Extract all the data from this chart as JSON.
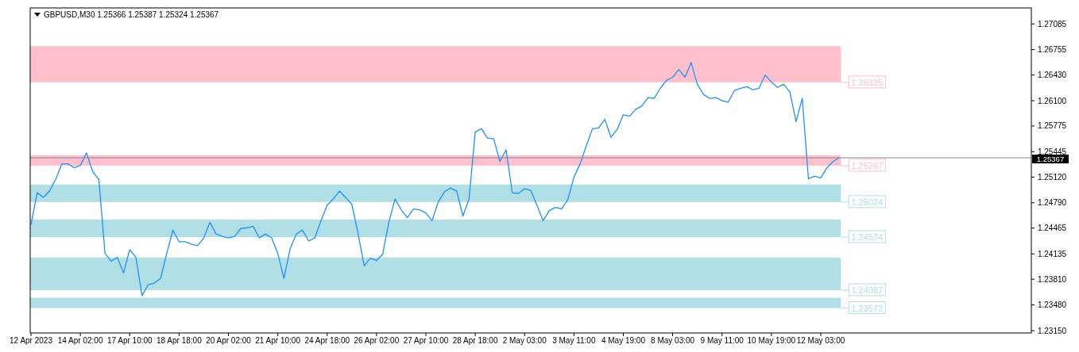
{
  "chart_data": {
    "type": "line",
    "title": "GBPUSD,M30 1.25366 1.25387 1.25324 1.25367",
    "categories": [
      "12 Apr 2023",
      null,
      null,
      null,
      null,
      null,
      null,
      null,
      "14 Apr 02:00",
      null,
      null,
      null,
      null,
      null,
      null,
      null,
      "17 Apr 10:00",
      null,
      null,
      null,
      null,
      null,
      null,
      null,
      "18 Apr 18:00",
      null,
      null,
      null,
      null,
      null,
      null,
      null,
      "20 Apr 02:00",
      null,
      null,
      null,
      null,
      null,
      null,
      null,
      "21 Apr 10:00",
      null,
      null,
      null,
      null,
      null,
      null,
      null,
      "24 Apr 18:00",
      null,
      null,
      null,
      null,
      null,
      null,
      null,
      "26 Apr 02:00",
      null,
      null,
      null,
      null,
      null,
      null,
      null,
      "27 Apr 10:00",
      null,
      null,
      null,
      null,
      null,
      null,
      null,
      "28 Apr 18:00",
      null,
      null,
      null,
      null,
      null,
      null,
      null,
      "2 May 03:00",
      null,
      null,
      null,
      null,
      null,
      null,
      null,
      "3 May 11:00",
      null,
      null,
      null,
      null,
      null,
      null,
      null,
      "4 May 19:00",
      null,
      null,
      null,
      null,
      null,
      null,
      null,
      "8 May 03:00",
      null,
      null,
      null,
      null,
      null,
      null,
      null,
      "9 May 11:00",
      null,
      null,
      null,
      null,
      null,
      null,
      null,
      "10 May 19:00",
      null,
      null,
      null,
      null,
      null,
      null,
      null,
      "12 May 03:00",
      null,
      null,
      null,
      null,
      null,
      null,
      null,
      null,
      null,
      null,
      null,
      null,
      null,
      null,
      null,
      null,
      null,
      null,
      null,
      null,
      null,
      null,
      null,
      null,
      null,
      null,
      null,
      null,
      null,
      null,
      null,
      null,
      null,
      null
    ],
    "series": [
      {
        "color": "#1e90ff",
        "values": [
          1.2451,
          1.2492,
          1.2486,
          1.2494,
          1.2509,
          1.2529,
          1.2529,
          1.2524,
          1.2527,
          1.2543,
          1.2519,
          1.2509,
          1.2414,
          1.2404,
          1.2409,
          1.2389,
          1.2419,
          1.2409,
          1.236,
          1.2374,
          1.2376,
          1.2382,
          1.2414,
          1.2444,
          1.2429,
          1.2429,
          1.2426,
          1.2424,
          1.2434,
          1.2454,
          1.2439,
          1.2436,
          1.2434,
          1.2436,
          1.2446,
          1.2447,
          1.2449,
          1.2434,
          1.2439,
          1.2434,
          1.2414,
          1.2382,
          1.242,
          1.2439,
          1.2444,
          1.243,
          1.2434,
          1.2456,
          1.2476,
          1.2484,
          1.2494,
          1.2486,
          1.2477,
          1.244,
          1.2398,
          1.2408,
          1.2405,
          1.2413,
          1.2454,
          1.2484,
          1.247,
          1.246,
          1.2471,
          1.247,
          1.2466,
          1.2456,
          1.248,
          1.2493,
          1.2498,
          1.2494,
          1.2462,
          1.2484,
          1.257,
          1.2574,
          1.2562,
          1.2561,
          1.2532,
          1.2547,
          1.2492,
          1.2491,
          1.2497,
          1.2495,
          1.2476,
          1.2456,
          1.2469,
          1.2473,
          1.2471,
          1.2483,
          1.2512,
          1.2529,
          1.2552,
          1.2574,
          1.2575,
          1.2586,
          1.2563,
          1.2573,
          1.2592,
          1.259,
          1.2599,
          1.2603,
          1.2614,
          1.2613,
          1.2626,
          1.2636,
          1.264,
          1.265,
          1.264,
          1.2659,
          1.2631,
          1.2618,
          1.2613,
          1.2614,
          1.261,
          1.2608,
          1.2623,
          1.2626,
          1.2628,
          1.2624,
          1.2626,
          1.2643,
          1.2634,
          1.2627,
          1.2631,
          1.2621,
          1.2583,
          1.2613,
          1.251,
          1.2513,
          1.2511,
          1.2524,
          1.2532,
          1.2537,
          null,
          null,
          null,
          null,
          null,
          null,
          null,
          null,
          null,
          null,
          null,
          null,
          null,
          null,
          null,
          null,
          null,
          null,
          null,
          null,
          null,
          null,
          null,
          null,
          null,
          null,
          null,
          null,
          null,
          null,
          null
        ]
      }
    ],
    "ylim": [
      1.2312,
      1.2729
    ],
    "yticks": [
      {
        "value": 1.2315,
        "label": "1.23150"
      },
      {
        "value": 1.2348,
        "label": "1.23480"
      },
      {
        "value": 1.2381,
        "label": "1.23810"
      },
      1.24135,
      1.24465,
      {
        "value": 1.2479,
        "label": "1.24790"
      },
      {
        "value": 1.2512,
        "label": "1.25120"
      },
      1.25445,
      1.25775,
      {
        "value": 1.261,
        "label": "1.26100"
      },
      {
        "value": 1.2643,
        "label": "1.26430"
      },
      1.26755,
      1.27085
    ],
    "bands": [
      {
        "axis": "y",
        "from": 1.26335,
        "to": 1.268,
        "label": "1.26335",
        "color": "#ffc0cb"
      },
      {
        "axis": "y",
        "from": 1.25267,
        "to": 1.254,
        "label": "1.25267",
        "color": "#ffc0cb"
      },
      {
        "axis": "y",
        "from": 1.248,
        "to": 1.25024,
        "label": "1.25024",
        "color": "#b0dfe5"
      },
      {
        "axis": "y",
        "from": 1.2435,
        "to": 1.24574,
        "label": "1.24574",
        "color": "#b0dfe5"
      },
      {
        "axis": "y",
        "from": 1.2367,
        "to": 1.24087,
        "label": "1.24087",
        "color": "#b0dfe5"
      },
      {
        "axis": "y",
        "from": 1.2344,
        "to": 1.23572,
        "label": "1.23572",
        "color": "#b0dfe5"
      }
    ],
    "ref_lines": [
      {
        "axis": "y",
        "value": 1.25367,
        "label": "1.25367",
        "color": "#808a99"
      }
    ],
    "grid": false
  }
}
